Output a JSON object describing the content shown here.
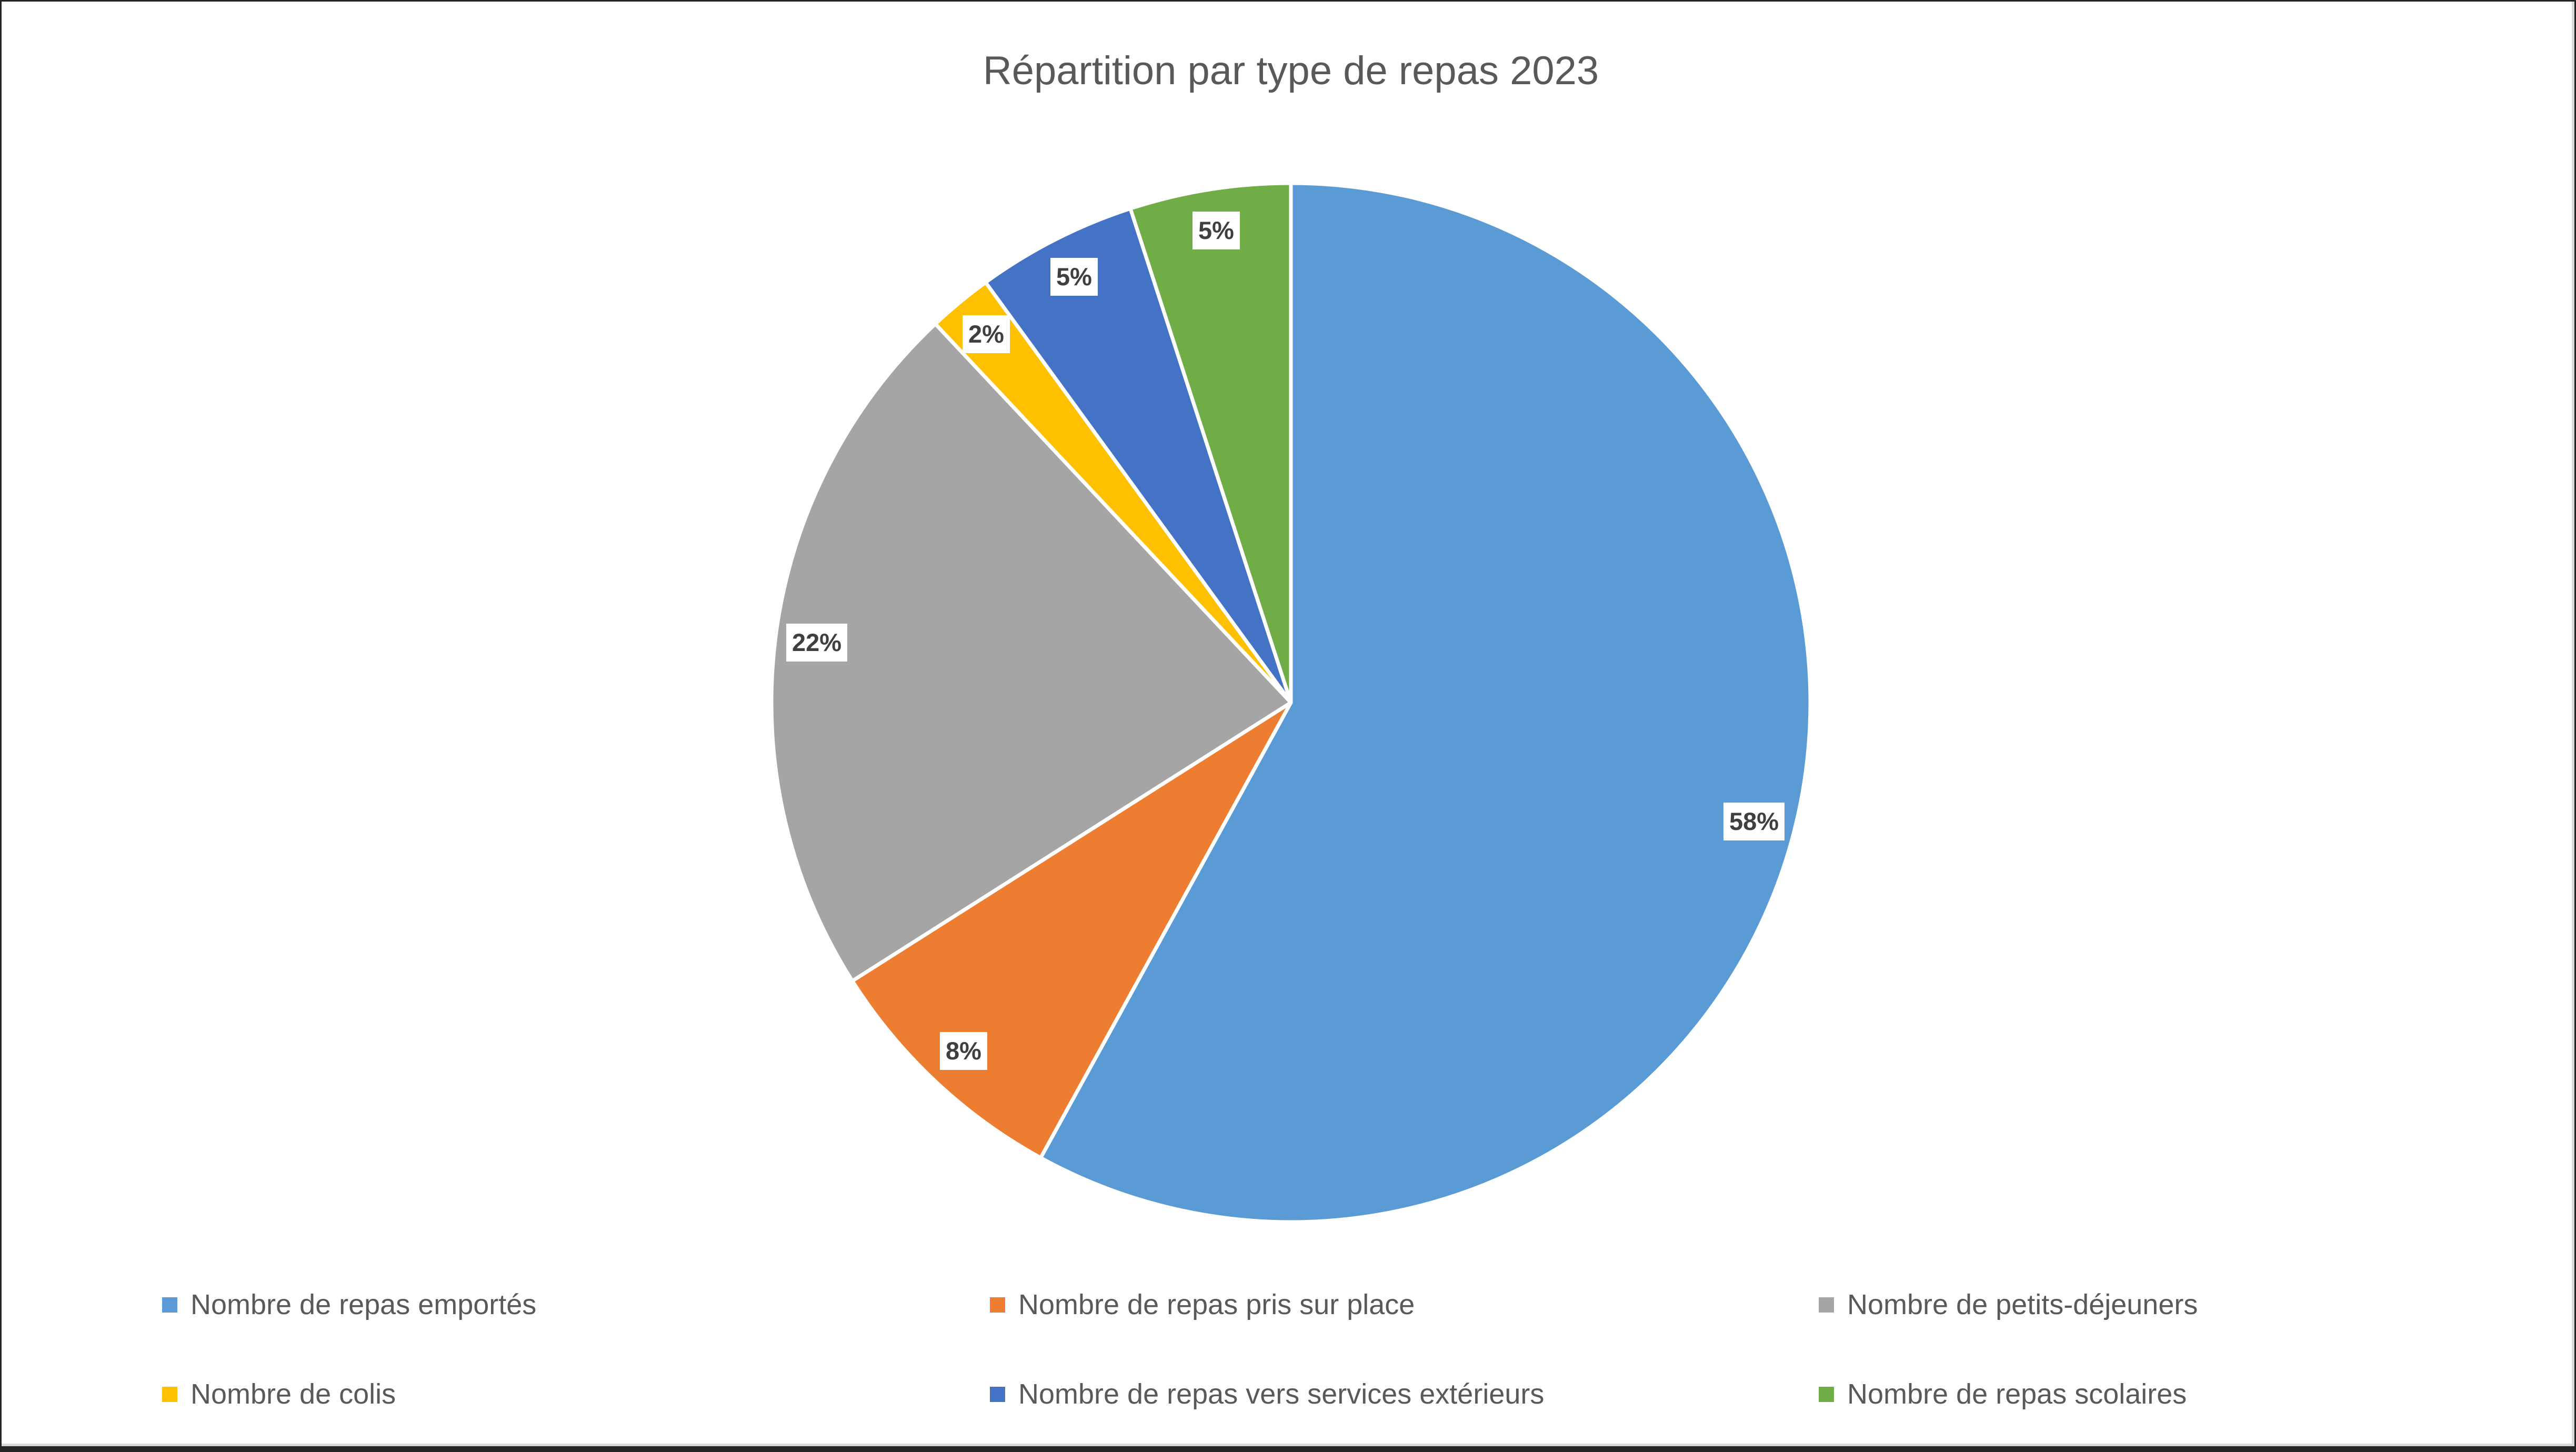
{
  "page": {
    "title": "Répartition par type de repas 2023"
  },
  "chart_data": {
    "type": "pie",
    "title": "Répartition par type de repas 2023",
    "unit": "percent",
    "start_angle_deg": 0,
    "direction": "clockwise",
    "legend_position": "bottom",
    "grid": false,
    "slices": [
      {
        "label": "Nombre de repas emportés",
        "value": 58,
        "data_label": "58%",
        "color": "#5B9BD5"
      },
      {
        "label": "Nombre de repas pris sur place",
        "value": 8,
        "data_label": "8%",
        "color": "#ED7D31"
      },
      {
        "label": "Nombre de petits-déjeuners",
        "value": 22,
        "data_label": "22%",
        "color": "#A5A5A5"
      },
      {
        "label": "Nombre de colis",
        "value": 2,
        "data_label": "2%",
        "color": "#FFC000"
      },
      {
        "label": "Nombre de repas vers services extérieurs",
        "value": 5,
        "data_label": "5%",
        "color": "#4472C4"
      },
      {
        "label": "Nombre de repas scolaires",
        "value": 5,
        "data_label": "5%",
        "color": "#70AD47"
      }
    ]
  },
  "colors": {
    "title_text": "#595959",
    "legend_text": "#595959",
    "data_label_text": "#3F3F3F",
    "data_label_bg": "#FFFFFF",
    "slice_border": "#FFFFFF",
    "canvas_bg": "#FFFFFF",
    "frame_border": "#242424"
  }
}
